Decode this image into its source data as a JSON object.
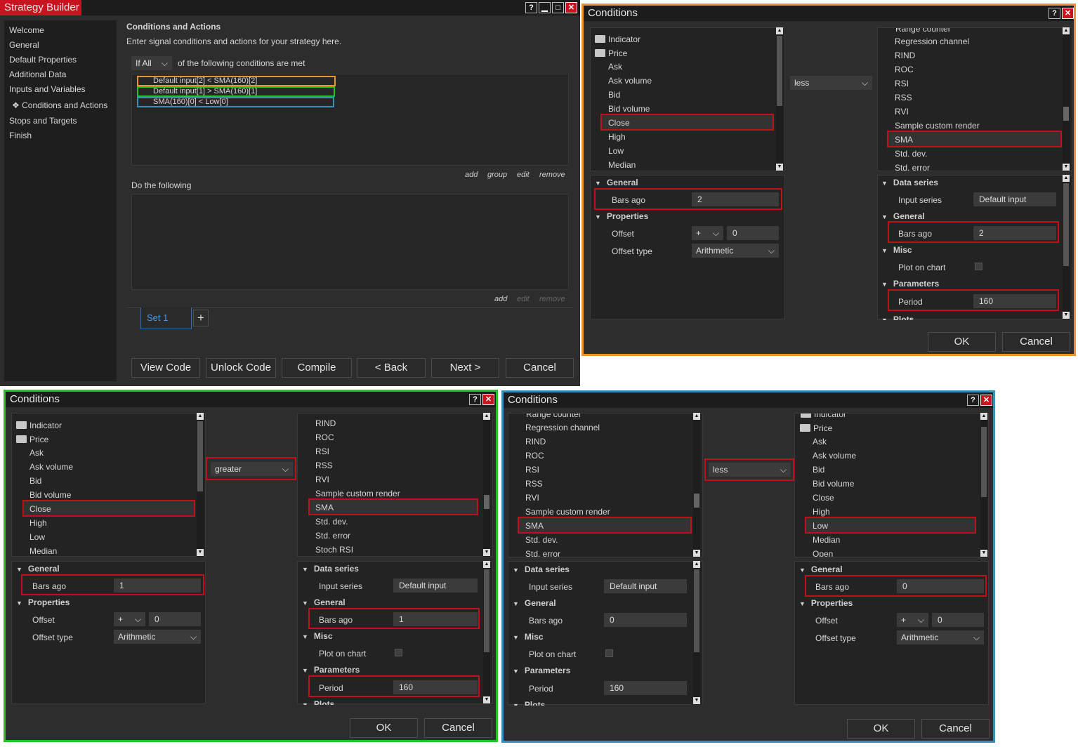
{
  "main": {
    "title": "Strategy Builder",
    "help": "?",
    "nav": [
      "Welcome",
      "General",
      "Default Properties",
      "Additional Data",
      "Inputs and Variables",
      "Conditions and Actions",
      "Stops and Targets",
      "Finish"
    ],
    "nav_bullet": "❖",
    "heading": "Conditions and Actions",
    "subtitle": "Enter signal conditions and actions for your strategy here.",
    "if_value": "If All",
    "if_suffix": "of the following conditions are met",
    "conditions": [
      "Default input[2] < SMA(160)[2]",
      "Default input[1] > SMA(160)[1]",
      "SMA(160)[0] < Low[0]"
    ],
    "cond_colors": [
      "#f0922c",
      "#22c322",
      "#3a8fb7"
    ],
    "cond_links": [
      "add",
      "group",
      "edit",
      "remove"
    ],
    "do_label": "Do the following",
    "action_links": [
      "add",
      "edit",
      "remove"
    ],
    "set_tab": "Set 1",
    "plus": "+",
    "buttons": [
      "View Code",
      "Unlock Code",
      "Compile",
      "< Back",
      "Next >",
      "Cancel"
    ]
  },
  "dialog_orange": {
    "title": "Conditions",
    "border": "#f0922c",
    "left_list": [
      "Indicator",
      "Price",
      "Ask",
      "Ask volume",
      "Bid",
      "Bid volume",
      "Close",
      "High",
      "Low",
      "Median"
    ],
    "operator": "less",
    "right_list": [
      "Range counter",
      "Regression channel",
      "RIND",
      "ROC",
      "RSI",
      "RSS",
      "RVI",
      "Sample custom render",
      "SMA",
      "Std. dev.",
      "Std. error"
    ],
    "left_props": {
      "general": "General",
      "bars_ago_label": "Bars ago",
      "bars_ago": "2",
      "properties": "Properties",
      "offset_label": "Offset",
      "offset_sign": "+",
      "offset": "0",
      "offset_type_label": "Offset type",
      "offset_type": "Arithmetic"
    },
    "right_props": {
      "data_series": "Data series",
      "input_series_label": "Input series",
      "input_series": "Default input",
      "general": "General",
      "bars_ago_label": "Bars ago",
      "bars_ago": "2",
      "misc": "Misc",
      "plot_label": "Plot on chart",
      "parameters": "Parameters",
      "period_label": "Period",
      "period": "160",
      "plots": "Plots"
    },
    "ok": "OK",
    "cancel": "Cancel"
  },
  "dialog_green": {
    "title": "Conditions",
    "border": "#22c322",
    "left_list": [
      "Indicator",
      "Price",
      "Ask",
      "Ask volume",
      "Bid",
      "Bid volume",
      "Close",
      "High",
      "Low",
      "Median"
    ],
    "operator": "greater",
    "right_list": [
      "RIND",
      "ROC",
      "RSI",
      "RSS",
      "RVI",
      "Sample custom render",
      "SMA",
      "Std. dev.",
      "Std. error",
      "Stoch RSI"
    ],
    "left_props": {
      "general": "General",
      "bars_ago_label": "Bars ago",
      "bars_ago": "1",
      "properties": "Properties",
      "offset_label": "Offset",
      "offset_sign": "+",
      "offset": "0",
      "offset_type_label": "Offset type",
      "offset_type": "Arithmetic"
    },
    "right_props": {
      "data_series": "Data series",
      "input_series_label": "Input series",
      "input_series": "Default input",
      "general": "General",
      "bars_ago_label": "Bars ago",
      "bars_ago": "1",
      "misc": "Misc",
      "plot_label": "Plot on chart",
      "parameters": "Parameters",
      "period_label": "Period",
      "period": "160",
      "plots": "Plots"
    },
    "ok": "OK",
    "cancel": "Cancel"
  },
  "dialog_blue": {
    "title": "Conditions",
    "border": "#3a8fb7",
    "left_list": [
      "Range counter",
      "Regression channel",
      "RIND",
      "ROC",
      "RSI",
      "RSS",
      "RVI",
      "Sample custom render",
      "SMA",
      "Std. dev.",
      "Std. error"
    ],
    "operator": "less",
    "right_list": [
      "Indicator",
      "Price",
      "Ask",
      "Ask volume",
      "Bid",
      "Bid volume",
      "Close",
      "High",
      "Low",
      "Median",
      "Open"
    ],
    "left_props": {
      "data_series": "Data series",
      "input_series_label": "Input series",
      "input_series": "Default input",
      "general": "General",
      "bars_ago_label": "Bars ago",
      "bars_ago": "0",
      "misc": "Misc",
      "plot_label": "Plot on chart",
      "parameters": "Parameters",
      "period_label": "Period",
      "period": "160",
      "plots": "Plots"
    },
    "right_props": {
      "general": "General",
      "bars_ago_label": "Bars ago",
      "bars_ago": "0",
      "properties": "Properties",
      "offset_label": "Offset",
      "offset_sign": "+",
      "offset": "0",
      "offset_type_label": "Offset type",
      "offset_type": "Arithmetic"
    },
    "ok": "OK",
    "cancel": "Cancel"
  },
  "icons": {
    "question": "?",
    "close": "✕",
    "chevron": "⌄",
    "triangle": "▼",
    "up": "▲",
    "down": "▼"
  }
}
